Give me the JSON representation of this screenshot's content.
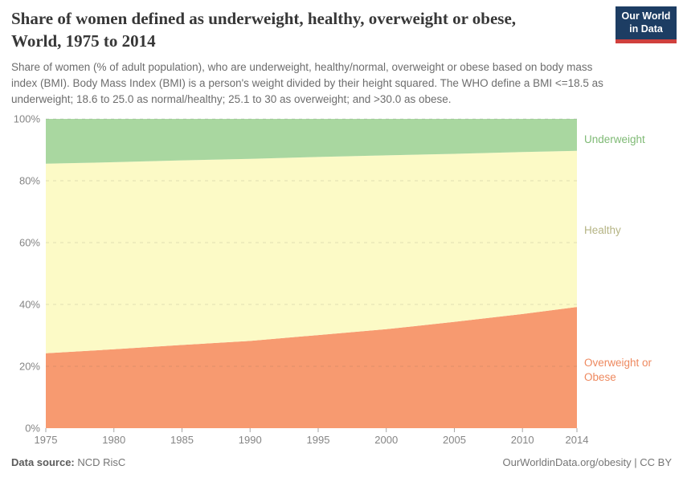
{
  "header": {
    "title_lines": [
      "Share of women defined as underweight, healthy, overweight or obese,",
      "World, 1975 to 2014"
    ],
    "subtitle_lines": [
      "Share of women (% of adult population), who are underweight, healthy/normal, overweight or obese based on body mass",
      "index (BMI). Body Mass Index (BMI) is a person's weight divided by their height squared. The WHO define a BMI <=18.5 as",
      "underweight; 18.6 to 25.0 as normal/healthy; 25.1 to 30 as overweight; and >30.0 as obese."
    ],
    "logo": {
      "line1": "Our World",
      "line2": "in Data",
      "bg_color": "#1d3d63",
      "bar_color": "#d0403d"
    }
  },
  "chart_data": {
    "type": "area",
    "stacked": true,
    "title": "Share of women defined as underweight, healthy, overweight or obese, World, 1975 to 2014",
    "xlabel": "",
    "ylabel": "",
    "x_range": [
      1975,
      2014
    ],
    "ylim": [
      0,
      100
    ],
    "grid": "dashed-horizontal",
    "legend_position": "right-of-plot",
    "x": [
      1975,
      1980,
      1985,
      1990,
      1995,
      2000,
      2005,
      2010,
      2014
    ],
    "series": [
      {
        "id": "overweight-or-obese",
        "label": "Overweight or Obese",
        "color": "#f79a70",
        "label_color": "#ee895f",
        "values": [
          24.2,
          25.5,
          26.9,
          28.2,
          30.1,
          32.0,
          34.4,
          36.9,
          39.2
        ]
      },
      {
        "id": "healthy",
        "label": "Healthy",
        "color": "#fcfac6",
        "label_color": "#b5b484",
        "values": [
          61.3,
          60.5,
          59.7,
          58.9,
          57.6,
          56.2,
          54.3,
          52.4,
          50.5
        ]
      },
      {
        "id": "underweight",
        "label": "Underweight",
        "color": "#a9d7a0",
        "label_color": "#7fba75",
        "values": [
          14.5,
          14.0,
          13.4,
          12.9,
          12.3,
          11.8,
          11.3,
          10.7,
          10.3
        ]
      }
    ],
    "y_ticks": [
      {
        "label": "0%",
        "value": 0
      },
      {
        "label": "20%",
        "value": 20
      },
      {
        "label": "40%",
        "value": 40
      },
      {
        "label": "60%",
        "value": 60
      },
      {
        "label": "80%",
        "value": 80
      },
      {
        "label": "100%",
        "value": 100
      }
    ],
    "x_ticks": [
      {
        "label": "1975",
        "value": 1975
      },
      {
        "label": "1980",
        "value": 1980
      },
      {
        "label": "1985",
        "value": 1985
      },
      {
        "label": "1990",
        "value": 1990
      },
      {
        "label": "1995",
        "value": 1995
      },
      {
        "label": "2000",
        "value": 2000
      },
      {
        "label": "2005",
        "value": 2005
      },
      {
        "label": "2010",
        "value": 2010
      },
      {
        "label": "2014",
        "value": 2014
      }
    ]
  },
  "footer": {
    "datasource_label": "Data source:",
    "datasource_value": " NCD RisC",
    "credit": "OurWorldinData.org/obesity | CC BY"
  }
}
